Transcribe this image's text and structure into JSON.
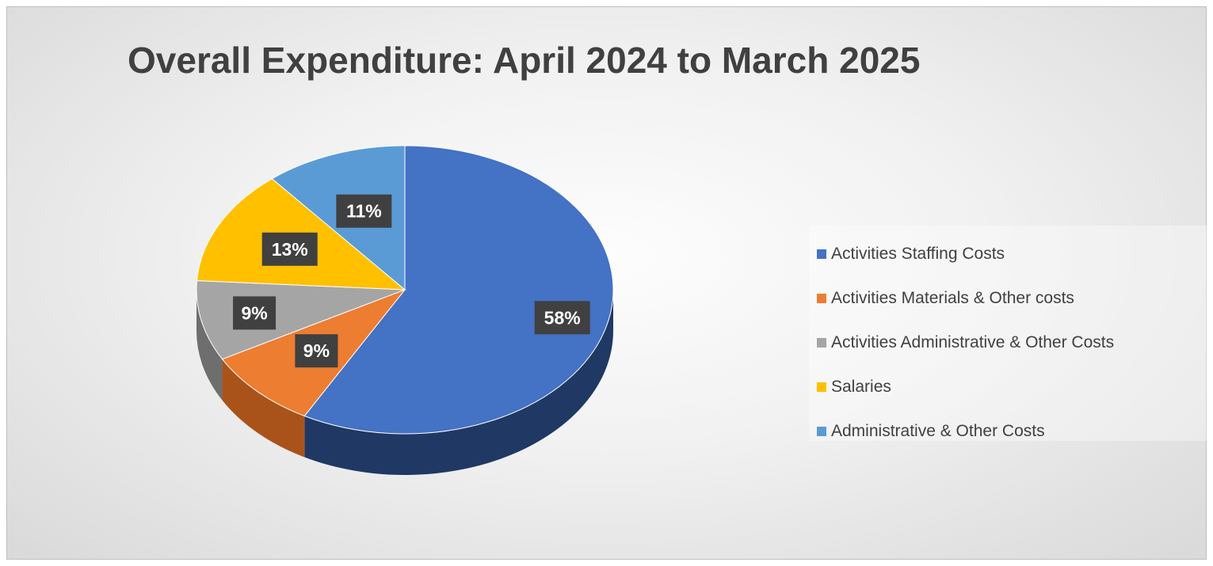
{
  "chart_data": {
    "type": "pie",
    "title": "Overall Expenditure: April 2024 to March 2025",
    "categories": [
      "Activities Staffing Costs",
      "Activities Materials & Other costs",
      "Activities Administrative & Other Costs",
      "Salaries",
      "Administrative & Other Costs"
    ],
    "values": [
      58,
      9,
      9,
      13,
      11
    ],
    "labels": [
      "58%",
      "9%",
      "9%",
      "13%",
      "11%"
    ],
    "unit": "%",
    "colors": [
      "#4472c4",
      "#ed7d31",
      "#a5a5a5",
      "#ffc000",
      "#5b9bd5"
    ],
    "side_colors": [
      "#203864",
      "#a9531b",
      "#6e6e6e",
      "#b08600",
      "#2f6da0"
    ],
    "start_angle_deg": 0,
    "direction": "clockwise",
    "style": "3d",
    "legend": "right"
  }
}
